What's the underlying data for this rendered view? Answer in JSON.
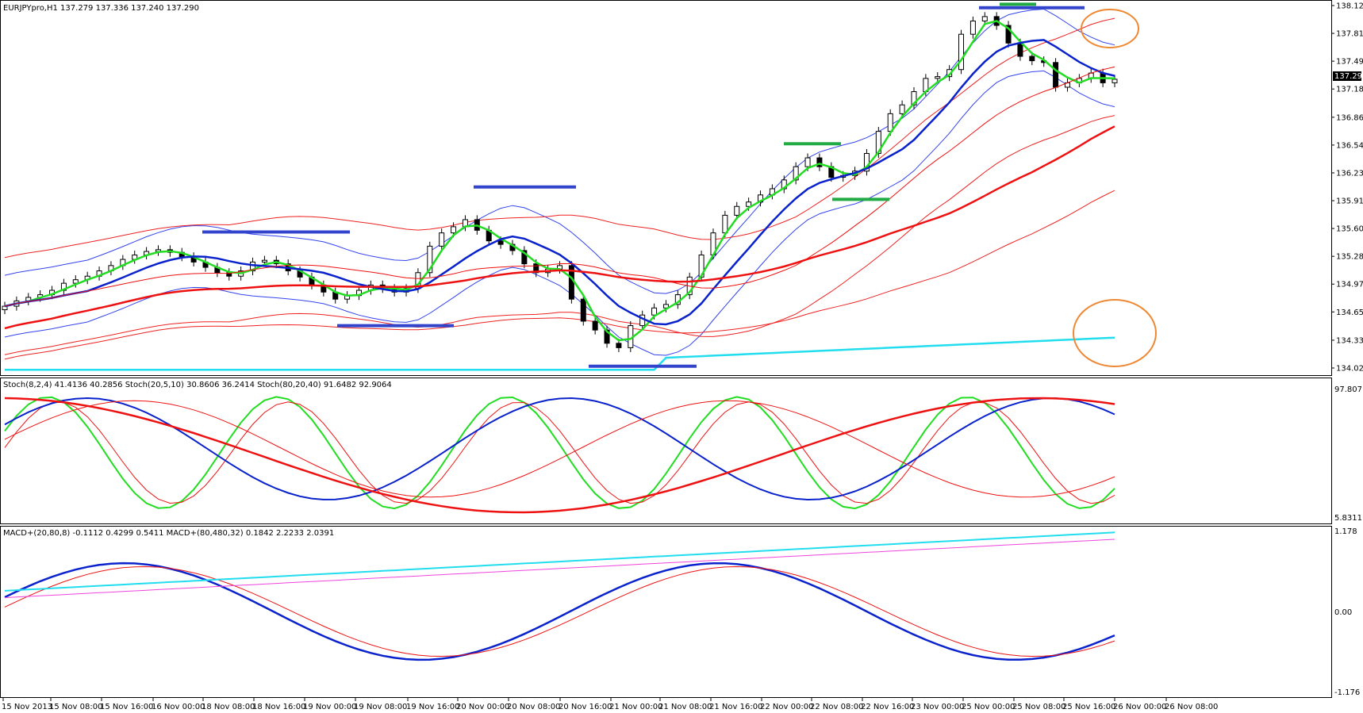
{
  "main": {
    "symbol_header": "EURJPYpro,H1  137.279 137.336 137.240 137.290",
    "price_axis": [
      "138.125",
      "137.810",
      "137.495",
      "137.180",
      "136.860",
      "136.545",
      "136.230",
      "135.915",
      "135.600",
      "135.285",
      "134.970",
      "134.655",
      "134.335",
      "134.020"
    ],
    "current_price_badge": "137.290"
  },
  "stoch": {
    "header": "Stoch(8,2,4) 41.4136 40.2856  Stoch(20,5,10) 30.8606 36.2414  Stoch(80,20,40) 91.6482 92.9064",
    "axis_top": "97.8071",
    "axis_bottom": "5.8311"
  },
  "macd": {
    "header": "MACD+(20,80,8) -0.1112 0.4299 0.5411  MACD+(80,480,32) 0.1842 2.2233 2.0391",
    "axis_top": "1.178",
    "axis_mid": "0.00",
    "axis_bottom": "-1.176"
  },
  "time_axis": [
    "15 Nov 2013",
    "15 Nov 08:00",
    "15 Nov 16:00",
    "16 Nov 00:00",
    "18 Nov 08:00",
    "18 Nov 16:00",
    "19 Nov 00:00",
    "19 Nov 08:00",
    "19 Nov 16:00",
    "20 Nov 00:00",
    "20 Nov 08:00",
    "20 Nov 16:00",
    "21 Nov 00:00",
    "21 Nov 08:00",
    "21 Nov 16:00",
    "22 Nov 00:00",
    "22 Nov 08:00",
    "22 Nov 16:00",
    "23 Nov 00:00",
    "25 Nov 00:00",
    "25 Nov 08:00",
    "25 Nov 16:00",
    "26 Nov 00:00",
    "26 Nov 08:00"
  ],
  "colors": {
    "green_ma": "#22dd22",
    "blue_ma": "#0a22cc",
    "red_ma": "#ee1111",
    "band_blue": "#3344ee",
    "band_red": "#ee2222",
    "cyan": "#22ddee",
    "magenta": "#ee44dd",
    "orange": "#ee8833",
    "hline_blue": "#3344cc",
    "hline_green": "#22aa44"
  },
  "chart_data": {
    "type": "candlestick",
    "symbol": "EURJPYpro",
    "timeframe": "H1",
    "ohlc_header": {
      "open": 137.279,
      "high": 137.336,
      "low": 137.24,
      "close": 137.29
    },
    "close_series": [
      134.72,
      134.78,
      134.82,
      134.85,
      134.9,
      134.98,
      135.02,
      135.06,
      135.12,
      135.18,
      135.25,
      135.3,
      135.34,
      135.36,
      135.33,
      135.28,
      135.22,
      135.16,
      135.1,
      135.06,
      135.12,
      135.22,
      135.24,
      135.2,
      135.12,
      135.05,
      134.96,
      134.88,
      134.8,
      134.84,
      134.9,
      134.96,
      134.92,
      134.88,
      134.92,
      135.1,
      135.4,
      135.55,
      135.62,
      135.7,
      135.58,
      135.46,
      135.42,
      135.35,
      135.2,
      135.1,
      135.14,
      135.18,
      134.8,
      134.55,
      134.45,
      134.3,
      134.25,
      134.5,
      134.62,
      134.7,
      134.74,
      134.85,
      135.05,
      135.3,
      135.55,
      135.75,
      135.85,
      135.9,
      135.98,
      136.05,
      136.15,
      136.3,
      136.4,
      136.3,
      136.18,
      136.2,
      136.25,
      136.45,
      136.7,
      136.9,
      137.0,
      137.15,
      137.3,
      137.32,
      137.4,
      137.8,
      137.95,
      138.0,
      137.9,
      137.7,
      137.55,
      137.5,
      137.48,
      137.2,
      137.25,
      137.3,
      137.36,
      137.25,
      137.29
    ]
  }
}
